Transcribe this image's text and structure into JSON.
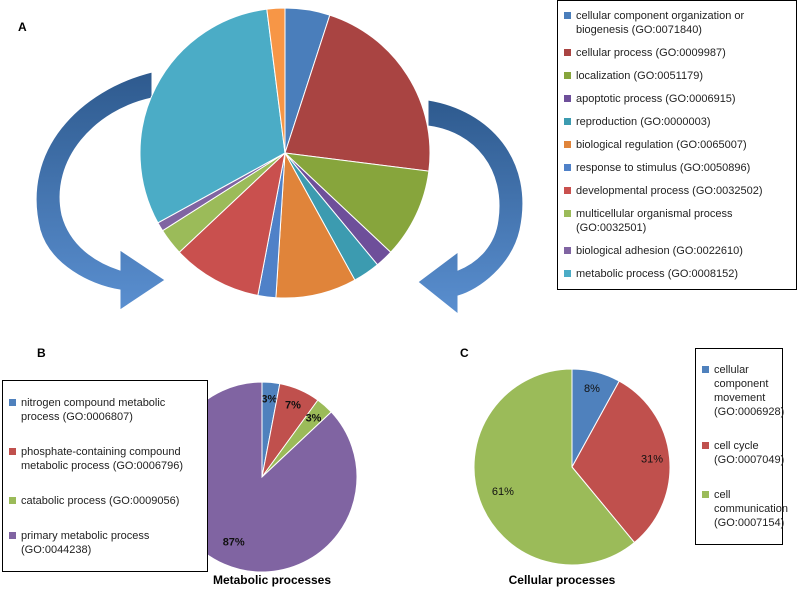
{
  "chart_data": [
    {
      "type": "pie",
      "label": "A",
      "categories": [
        "cellular component organization or biogenesis (GO:0071840)",
        "cellular process (GO:0009987)",
        "localization (GO:0051179)",
        "apoptotic process (GO:0006915)",
        "reproduction (GO:0000003)",
        "biological regulation (GO:0065007)",
        "response to stimulus (GO:0050896)",
        "developmental process (GO:0032502)",
        "multicellular organismal process (GO:0032501)",
        "biological adhesion (GO:0022610)",
        "metabolic process (GO:0008152)",
        null
      ],
      "values": [
        5,
        22,
        10,
        2,
        3,
        9,
        2,
        10,
        3,
        1,
        31,
        2
      ],
      "colors": [
        "#4a7ebb",
        "#a94442",
        "#87a53c",
        "#6e4f9a",
        "#3c9bb0",
        "#e0843a",
        "#4f81c8",
        "#c9504e",
        "#9bbb59",
        "#8064a2",
        "#4bacc6",
        "#f79646"
      ]
    },
    {
      "type": "pie",
      "label": "B",
      "title": "Metabolic processes",
      "categories": [
        "nitrogen compound metabolic process (GO:0006807)",
        "phosphate-containing compound metabolic process (GO:0006796)",
        "catabolic process (GO:0009056)",
        "primary metabolic process (GO:0044238)"
      ],
      "values": [
        3,
        7,
        3,
        87
      ],
      "value_labels": [
        "3%",
        "7%",
        "3%",
        "87%"
      ],
      "colors": [
        "#4f81bd",
        "#c0504d",
        "#9bbb59",
        "#8064a2"
      ]
    },
    {
      "type": "pie",
      "label": "C",
      "title": "Cellular processes",
      "categories": [
        "cellular component movement (GO:0006928)",
        "cell cycle (GO:0007049)",
        "cell communication (GO:0007154)"
      ],
      "values": [
        8,
        31,
        61
      ],
      "value_labels": [
        "8%",
        "31%",
        "61%"
      ],
      "colors": [
        "#4f81bd",
        "#c0504d",
        "#9bbb59"
      ]
    }
  ]
}
